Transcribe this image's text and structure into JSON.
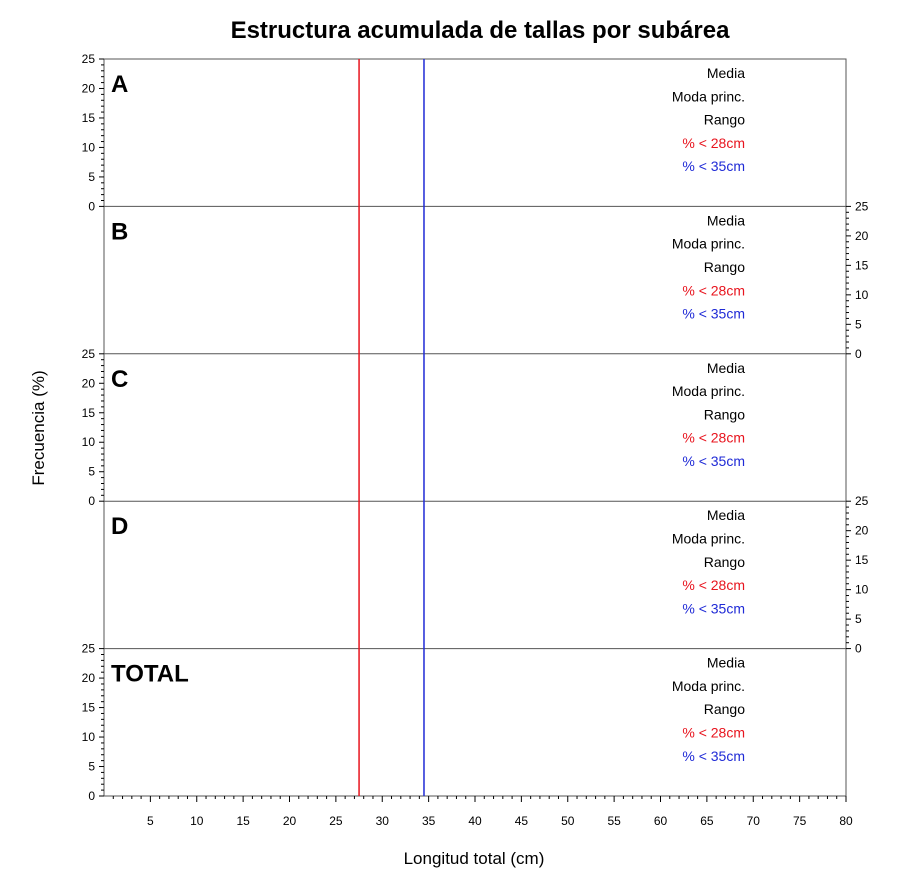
{
  "chart_data": {
    "type": "bar",
    "title": "Estructura acumulada de tallas por subárea",
    "xlabel": "Longitud total (cm)",
    "ylabel": "Frecuencia (%)",
    "xlim": [
      0,
      80
    ],
    "ylim": [
      0,
      25
    ],
    "x_ticks": [
      5,
      10,
      15,
      20,
      25,
      30,
      35,
      40,
      45,
      50,
      55,
      60,
      65,
      70,
      75,
      80
    ],
    "y_ticks": [
      0,
      5,
      10,
      15,
      20,
      25
    ],
    "reference_lines": [
      {
        "x": 27.5,
        "color": "#e8141e"
      },
      {
        "x": 34.5,
        "color": "#1f2ad6"
      }
    ],
    "panels": [
      {
        "label": "A",
        "y_axis_side": "left",
        "stats": [
          {
            "text": "Media",
            "color": "#000000"
          },
          {
            "text": "Moda princ.",
            "color": "#000000"
          },
          {
            "text": "Rango",
            "color": "#000000"
          },
          {
            "text": "% < 28cm",
            "color": "#e8141e"
          },
          {
            "text": "% < 35cm",
            "color": "#1f2ad6"
          }
        ],
        "values": []
      },
      {
        "label": "B",
        "y_axis_side": "right",
        "stats": [
          {
            "text": "Media",
            "color": "#000000"
          },
          {
            "text": "Moda princ.",
            "color": "#000000"
          },
          {
            "text": "Rango",
            "color": "#000000"
          },
          {
            "text": "% < 28cm",
            "color": "#e8141e"
          },
          {
            "text": "% < 35cm",
            "color": "#1f2ad6"
          }
        ],
        "values": []
      },
      {
        "label": "C",
        "y_axis_side": "left",
        "stats": [
          {
            "text": "Media",
            "color": "#000000"
          },
          {
            "text": "Moda princ.",
            "color": "#000000"
          },
          {
            "text": "Rango",
            "color": "#000000"
          },
          {
            "text": "% < 28cm",
            "color": "#e8141e"
          },
          {
            "text": "% < 35cm",
            "color": "#1f2ad6"
          }
        ],
        "values": []
      },
      {
        "label": "D",
        "y_axis_side": "right",
        "stats": [
          {
            "text": "Media",
            "color": "#000000"
          },
          {
            "text": "Moda princ.",
            "color": "#000000"
          },
          {
            "text": "Rango",
            "color": "#000000"
          },
          {
            "text": "% < 28cm",
            "color": "#e8141e"
          },
          {
            "text": "% < 35cm",
            "color": "#1f2ad6"
          }
        ],
        "values": []
      },
      {
        "label": "TOTAL",
        "y_axis_side": "left",
        "stats": [
          {
            "text": "Media",
            "color": "#000000"
          },
          {
            "text": "Moda princ.",
            "color": "#000000"
          },
          {
            "text": "Rango",
            "color": "#000000"
          },
          {
            "text": "% < 28cm",
            "color": "#e8141e"
          },
          {
            "text": "% < 35cm",
            "color": "#1f2ad6"
          }
        ],
        "values": []
      }
    ],
    "grid": false,
    "legend": "none"
  }
}
